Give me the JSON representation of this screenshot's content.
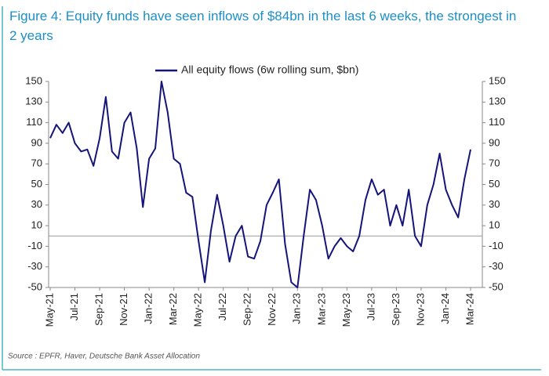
{
  "chart_data": {
    "type": "line",
    "title": "Figure 4: Equity funds have seen inflows of $84bn in the last 6 weeks, the strongest in 2 years",
    "source": "Source : EPFR, Haver, Deutsche Bank Asset Allocation",
    "categories": [
      "May-21",
      null,
      null,
      null,
      "Jul-21",
      null,
      null,
      null,
      "Sep-21",
      null,
      null,
      null,
      "Nov-21",
      null,
      null,
      null,
      "Jan-22",
      null,
      null,
      null,
      "Mar-22",
      null,
      null,
      null,
      "May-22",
      null,
      null,
      null,
      "Jul-22",
      null,
      null,
      null,
      "Sep-22",
      null,
      null,
      null,
      "Nov-22",
      null,
      null,
      null,
      "Jan-23",
      null,
      null,
      null,
      "Mar-23",
      null,
      null,
      null,
      "May-23",
      null,
      null,
      null,
      "Jul-23",
      null,
      null,
      null,
      "Sep-23",
      null,
      null,
      null,
      "Nov-23",
      null,
      null,
      null,
      "Jan-24",
      null,
      null,
      null,
      "Mar-24"
    ],
    "series": [
      {
        "name": "All equity flows (6w rolling sum, $bn)",
        "color": "#14147a",
        "values": [
          95,
          108,
          100,
          110,
          90,
          82,
          84,
          68,
          95,
          135,
          82,
          75,
          110,
          120,
          85,
          28,
          75,
          85,
          150,
          120,
          75,
          70,
          42,
          38,
          -5,
          -45,
          5,
          40,
          10,
          -25,
          0,
          10,
          -20,
          -22,
          -5,
          30,
          42,
          55,
          -8,
          -45,
          -50,
          0,
          45,
          35,
          10,
          -22,
          -10,
          -2,
          -10,
          -15,
          0,
          35,
          55,
          40,
          45,
          10,
          30,
          10,
          45,
          0,
          -10,
          30,
          50,
          80,
          45,
          30,
          18,
          55,
          84
        ]
      }
    ],
    "ylim": [
      -50,
      150
    ],
    "yticks": [
      -50,
      -30,
      -10,
      10,
      30,
      50,
      70,
      90,
      110,
      130,
      150
    ],
    "y2lim": [
      -50,
      150
    ],
    "y2ticks": [
      -50,
      -30,
      -10,
      10,
      30,
      50,
      70,
      90,
      110,
      130,
      150
    ],
    "legend": "top"
  }
}
